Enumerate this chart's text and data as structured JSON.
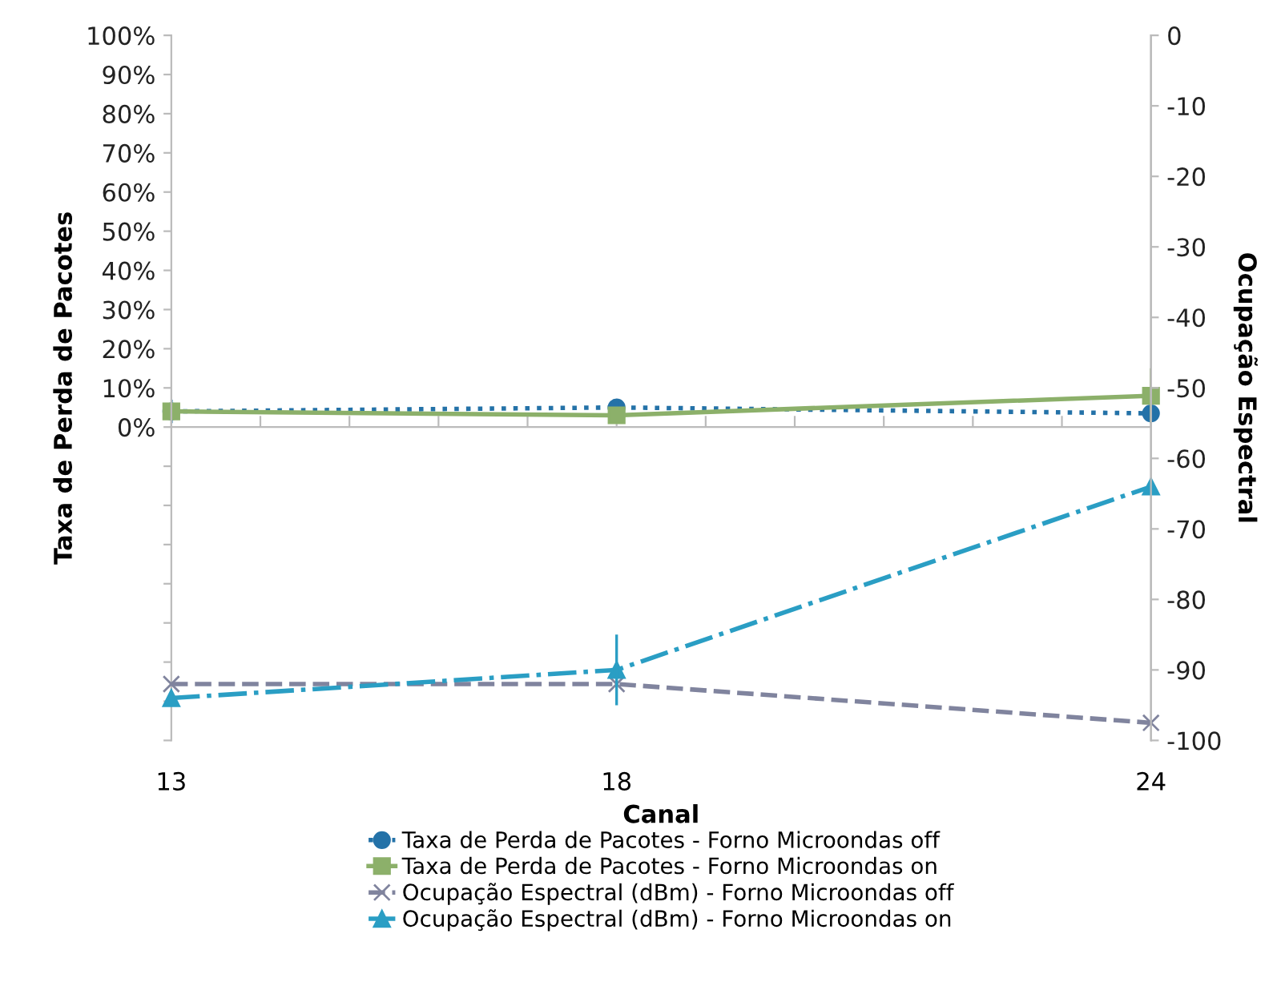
{
  "chart_data": {
    "type": "line",
    "xlabel": "Canal",
    "ylabel": "Taxa de Perda de Pacotes",
    "y2label": "Ocupação Espectral",
    "x": [
      13,
      18,
      24
    ],
    "xlim": [
      13,
      24
    ],
    "xticks": [
      13,
      {
        "value": 14,
        "label": null
      },
      {
        "value": 15,
        "label": null
      },
      {
        "value": 16,
        "label": null
      },
      {
        "value": 17,
        "label": null
      },
      18,
      {
        "value": 19,
        "label": null
      },
      {
        "value": 20,
        "label": null
      },
      {
        "value": 21,
        "label": null
      },
      {
        "value": 22,
        "label": null
      },
      {
        "value": 23,
        "label": null
      },
      24
    ],
    "ylim": [
      -80,
      100
    ],
    "yticks": [
      {
        "value": -80,
        "label": null
      },
      {
        "value": -70,
        "label": null
      },
      {
        "value": -60,
        "label": null
      },
      {
        "value": -50,
        "label": null
      },
      {
        "value": -40,
        "label": null
      },
      {
        "value": -30,
        "label": null
      },
      {
        "value": -20,
        "label": null
      },
      {
        "value": -10,
        "label": null
      },
      {
        "value": 0,
        "label": "0%"
      },
      {
        "value": 10,
        "label": "10%"
      },
      {
        "value": 20,
        "label": "20%"
      },
      {
        "value": 30,
        "label": "30%"
      },
      {
        "value": 40,
        "label": "40%"
      },
      {
        "value": 50,
        "label": "50%"
      },
      {
        "value": 60,
        "label": "60%"
      },
      {
        "value": 70,
        "label": "70%"
      },
      {
        "value": 80,
        "label": "80%"
      },
      {
        "value": 90,
        "label": "90%"
      },
      {
        "value": 100,
        "label": "100%"
      }
    ],
    "y2lim": [
      -100,
      0
    ],
    "y2ticks": [
      -100,
      -90,
      -80,
      -70,
      -60,
      -50,
      -40,
      -30,
      -20,
      -10,
      0
    ],
    "legend": "bottom",
    "series": [
      {
        "name": "Taxa de Perda de Pacotes - Forno Microondas off",
        "color": "#2472a8",
        "values": [
          4,
          5,
          3.5
        ],
        "errors": [
          3,
          2,
          null
        ],
        "marker": "circle",
        "line_style": "dotted"
      },
      {
        "name": "Taxa de Perda de Pacotes - Forno Microondas on",
        "color": "#8cb06a",
        "values": [
          4,
          3,
          8
        ],
        "errors": [
          null,
          null,
          7
        ],
        "marker": "square",
        "line_style": "solid"
      },
      {
        "name": "Ocupação Espectral (dBm) - Forno Microondas off",
        "color": "#80849e",
        "values": [
          -92,
          -92,
          -97.5
        ],
        "axis": "y2",
        "marker": "cross",
        "line_style": "dashed"
      },
      {
        "name": "Ocupação Espectral (dBm) - Forno Microondas on",
        "color": "#2a9ec4",
        "values": [
          -94,
          -90,
          -64
        ],
        "errors": [
          null,
          5,
          null
        ],
        "axis": "y2",
        "marker": "triangle",
        "line_style": "dashdot"
      }
    ]
  }
}
